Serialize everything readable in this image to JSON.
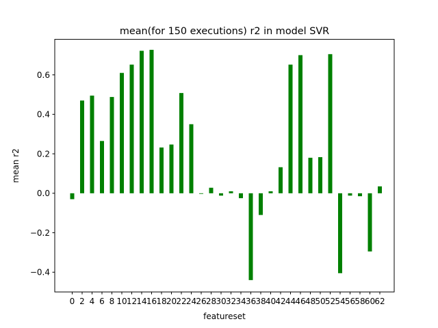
{
  "chart_data": {
    "type": "bar",
    "title": "mean(for 150 executions) r2 in model SVR",
    "xlabel": "featureset",
    "ylabel": "mean r2",
    "bar_color": "#008000",
    "ylim": [
      -0.5,
      0.78
    ],
    "yticks": [
      -0.4,
      -0.2,
      0.0,
      0.2,
      0.4,
      0.6
    ],
    "ytick_labels": [
      "−0.4",
      "−0.2",
      "0.0",
      "0.2",
      "0.4",
      "0.6"
    ],
    "categories": [
      "0",
      "2",
      "4",
      "6",
      "8",
      "10",
      "12",
      "14",
      "16",
      "18",
      "20",
      "22",
      "24",
      "26",
      "28",
      "30",
      "32",
      "34",
      "36",
      "38",
      "40",
      "42",
      "44",
      "46",
      "48",
      "50",
      "52",
      "54",
      "56",
      "58",
      "60",
      "62"
    ],
    "values": [
      -0.03,
      0.47,
      0.495,
      0.265,
      0.488,
      0.61,
      0.652,
      0.722,
      0.727,
      0.232,
      0.247,
      0.508,
      0.35,
      -0.003,
      0.028,
      -0.012,
      0.01,
      -0.025,
      -0.44,
      -0.11,
      0.01,
      0.132,
      0.652,
      0.7,
      0.18,
      0.183,
      0.705,
      -0.405,
      -0.012,
      -0.015,
      -0.295,
      0.035
    ],
    "grid": false,
    "legend": "none"
  }
}
